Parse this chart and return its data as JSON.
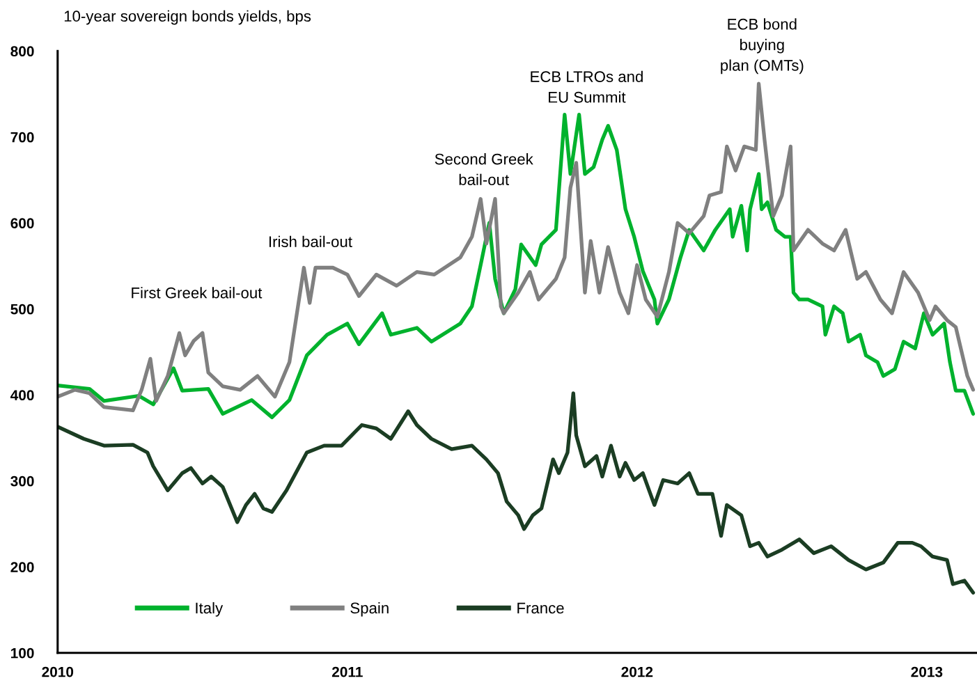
{
  "chart_data": {
    "type": "line",
    "title": "10-year sovereign bonds yields, bps",
    "xlim": [
      2010,
      2013.17
    ],
    "xticks": [
      2010,
      2011,
      2012,
      2013
    ],
    "ylim": [
      100,
      800
    ],
    "yticks": [
      100,
      200,
      300,
      400,
      500,
      600,
      700,
      800
    ],
    "grid": false,
    "legend": "bottom left",
    "marker": "none",
    "line_style": "solid",
    "series": [
      {
        "name": "Italy",
        "color": "#00b22d",
        "x": [
          2010.0,
          2010.11,
          2010.16,
          2010.28,
          2010.33,
          2010.4,
          2010.43,
          2010.52,
          2010.57,
          2010.67,
          2010.74,
          2010.8,
          2010.86,
          2010.93,
          2011.0,
          2011.04,
          2011.12,
          2011.15,
          2011.24,
          2011.29,
          2011.39,
          2011.43,
          2011.46,
          2011.49,
          2011.51,
          2011.54,
          2011.58,
          2011.6,
          2011.65,
          2011.67,
          2011.72,
          2011.75,
          2011.77,
          2011.8,
          2011.82,
          2011.85,
          2011.88,
          2011.9,
          2011.93,
          2011.96,
          2011.99,
          2012.02,
          2012.06,
          2012.07,
          2012.11,
          2012.15,
          2012.18,
          2012.23,
          2012.27,
          2012.32,
          2012.33,
          2012.36,
          2012.38,
          2012.39,
          2012.42,
          2012.43,
          2012.45,
          2012.48,
          2012.51,
          2012.53,
          2012.54,
          2012.56,
          2012.59,
          2012.64,
          2012.65,
          2012.68,
          2012.71,
          2012.73,
          2012.77,
          2012.79,
          2012.83,
          2012.85,
          2012.89,
          2012.92,
          2012.96,
          2012.99,
          2013.02,
          2013.06,
          2013.08,
          2013.1,
          2013.13,
          2013.16
        ],
        "values": [
          411,
          407,
          393,
          399,
          389,
          431,
          405,
          407,
          378,
          394,
          374,
          394,
          446,
          470,
          483,
          459,
          495,
          470,
          478,
          462,
          483,
          503,
          551,
          600,
          535,
          495,
          523,
          575,
          551,
          575,
          592,
          726,
          657,
          726,
          657,
          665,
          697,
          713,
          685,
          616,
          584,
          544,
          511,
          483,
          511,
          560,
          592,
          568,
          592,
          616,
          584,
          620,
          568,
          616,
          657,
          616,
          624,
          592,
          584,
          584,
          519,
          511,
          511,
          503,
          470,
          503,
          495,
          462,
          470,
          446,
          438,
          422,
          430,
          462,
          454,
          495,
          470,
          483,
          438,
          405,
          405,
          378
        ]
      },
      {
        "name": "Spain",
        "color": "#808080",
        "x": [
          2010.0,
          2010.06,
          2010.11,
          2010.16,
          2010.26,
          2010.29,
          2010.32,
          2010.34,
          2010.38,
          2010.42,
          2010.44,
          2010.47,
          2010.5,
          2010.52,
          2010.57,
          2010.63,
          2010.69,
          2010.75,
          2010.8,
          2010.85,
          2010.87,
          2010.89,
          2010.95,
          2011.0,
          2011.04,
          2011.1,
          2011.17,
          2011.24,
          2011.3,
          2011.39,
          2011.43,
          2011.46,
          2011.48,
          2011.51,
          2011.53,
          2011.54,
          2011.59,
          2011.63,
          2011.66,
          2011.72,
          2011.75,
          2011.77,
          2011.79,
          2011.82,
          2011.84,
          2011.87,
          2011.9,
          2011.94,
          2011.97,
          2012.0,
          2012.03,
          2012.07,
          2012.11,
          2012.14,
          2012.18,
          2012.23,
          2012.25,
          2012.29,
          2012.31,
          2012.34,
          2012.37,
          2012.41,
          2012.42,
          2012.44,
          2012.47,
          2012.5,
          2012.53,
          2012.54,
          2012.59,
          2012.64,
          2012.68,
          2012.72,
          2012.76,
          2012.79,
          2012.84,
          2012.88,
          2012.92,
          2012.97,
          2013.01,
          2013.03,
          2013.07,
          2013.1,
          2013.14,
          2013.16
        ],
        "values": [
          398,
          406,
          402,
          386,
          382,
          406,
          442,
          393,
          422,
          472,
          446,
          463,
          472,
          426,
          410,
          406,
          422,
          398,
          438,
          548,
          507,
          548,
          548,
          540,
          515,
          540,
          527,
          543,
          540,
          560,
          584,
          628,
          576,
          628,
          503,
          495,
          519,
          543,
          511,
          535,
          560,
          641,
          670,
          519,
          579,
          519,
          572,
          519,
          495,
          551,
          511,
          491,
          543,
          600,
          588,
          608,
          632,
          636,
          689,
          661,
          689,
          685,
          762,
          697,
          608,
          632,
          689,
          568,
          592,
          576,
          568,
          592,
          535,
          543,
          511,
          495,
          543,
          519,
          487,
          503,
          487,
          479,
          422,
          406
        ]
      },
      {
        "name": "France",
        "color": "#1b3d23",
        "x": [
          2010.0,
          2010.09,
          2010.16,
          2010.26,
          2010.31,
          2010.33,
          2010.38,
          2010.43,
          2010.46,
          2010.5,
          2010.53,
          2010.57,
          2010.62,
          2010.65,
          2010.68,
          2010.71,
          2010.74,
          2010.79,
          2010.86,
          2010.92,
          2010.98,
          2011.05,
          2011.1,
          2011.15,
          2011.21,
          2011.24,
          2011.29,
          2011.36,
          2011.43,
          2011.48,
          2011.52,
          2011.55,
          2011.59,
          2011.61,
          2011.64,
          2011.67,
          2011.71,
          2011.73,
          2011.76,
          2011.78,
          2011.79,
          2011.82,
          2011.86,
          2011.88,
          2011.91,
          2011.94,
          2011.96,
          2011.99,
          2012.02,
          2012.06,
          2012.09,
          2012.14,
          2012.18,
          2012.21,
          2012.26,
          2012.29,
          2012.31,
          2012.36,
          2012.39,
          2012.42,
          2012.45,
          2012.5,
          2012.56,
          2012.61,
          2012.67,
          2012.73,
          2012.79,
          2012.85,
          2012.9,
          2012.95,
          2012.98,
          2013.02,
          2013.07,
          2013.09,
          2013.13,
          2013.16
        ],
        "values": [
          363,
          349,
          341,
          342,
          333,
          317,
          289,
          309,
          315,
          297,
          305,
          293,
          252,
          272,
          285,
          268,
          264,
          289,
          333,
          341,
          341,
          365,
          361,
          349,
          381,
          365,
          349,
          337,
          341,
          325,
          309,
          276,
          260,
          244,
          260,
          268,
          325,
          309,
          333,
          402,
          353,
          317,
          329,
          305,
          341,
          305,
          321,
          301,
          309,
          272,
          301,
          297,
          309,
          285,
          285,
          236,
          272,
          260,
          224,
          228,
          212,
          220,
          232,
          216,
          224,
          208,
          197,
          205,
          228,
          228,
          224,
          212,
          208,
          180,
          184,
          170
        ]
      }
    ],
    "annotations": [
      "First Greek bail-out",
      "Irish bail-out",
      "Second Greek\nbail-out",
      "ECB LTROs and\nEU Summit",
      "ECB bond\nbuying\nplan (OMTs)"
    ]
  }
}
